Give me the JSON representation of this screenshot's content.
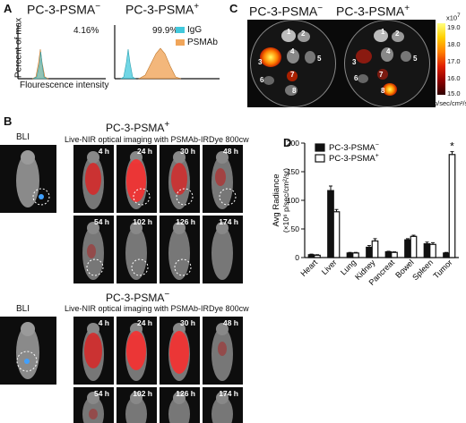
{
  "panels": {
    "a": {
      "letter": "A",
      "title_neg_main": "PC-3-PSMA",
      "title_neg_sup": "−",
      "title_pos_main": "PC-3-PSMA",
      "title_pos_sup": "+",
      "pct_neg": "4.16%",
      "pct_pos": "99.9%",
      "ylabel": "Percent of max",
      "xlabel": "Flourescence intensity",
      "legend": [
        {
          "label": "IgG",
          "color": "#41c8dc"
        },
        {
          "label": "PSMAb",
          "color": "#f0a55a"
        }
      ]
    },
    "b": {
      "letter": "B",
      "bli": "BLI",
      "pos_title_main": "PC-3-PSMA",
      "pos_title_sup": "+",
      "neg_title_main": "PC-3-PSMA",
      "neg_title_sup": "−",
      "subtitle": "Live-NIR optical imaging with PSMAb-IRDye 800cw",
      "times": [
        "4 h",
        "24 h",
        "30 h",
        "48 h",
        "54 h",
        "102 h",
        "126 h",
        "174 h"
      ]
    },
    "c": {
      "letter": "C",
      "title_neg_main": "PC-3-PSMA",
      "title_neg_sup": "−",
      "title_pos_main": "PC-3-PSMA",
      "title_pos_sup": "+",
      "organ_numbers": [
        "1",
        "2",
        "3",
        "4",
        "5",
        "6",
        "7",
        "8"
      ],
      "scale_top": "x10",
      "scale_top_sup": "7",
      "scale_ticks": [
        "19.0",
        "18.0",
        "17.0",
        "16.0",
        "15.0"
      ],
      "scale_unit": "p/sec/cm²/sr",
      "gradient": [
        "#ffff80",
        "#ffd000",
        "#ff8000",
        "#e02000",
        "#900000",
        "#300000"
      ]
    }
  },
  "chart_data": {
    "type": "bar",
    "panel_letter": "D",
    "categories": [
      "Heart",
      "Liver",
      "Lung",
      "Kidney",
      "Pancreat",
      "Bowel",
      "Spleen",
      "Tumor"
    ],
    "series": [
      {
        "name": "PC-3-PSMA−",
        "legend_main": "PC-3-PSMA",
        "legend_sup": "−",
        "fill": "#111111",
        "values": [
          5,
          117,
          8,
          18,
          10,
          31,
          24,
          8
        ],
        "errors": [
          1,
          8,
          1,
          3,
          1,
          2,
          3,
          1
        ]
      },
      {
        "name": "PC-3-PSMA+",
        "legend_main": "PC-3-PSMA",
        "legend_sup": "+",
        "fill": "#ffffff",
        "values": [
          4,
          80,
          8,
          29,
          9,
          37,
          23,
          180
        ],
        "errors": [
          1,
          4,
          1,
          4,
          1,
          2,
          3,
          5
        ]
      }
    ],
    "ylabel_line1": "Avg Radiance",
    "ylabel_line2": "(×10⁶ p/sec/cm²/sr)",
    "ylim": [
      0,
      200
    ],
    "yticks": [
      "0",
      "50",
      "100",
      "150",
      "200"
    ],
    "annotation": "*"
  }
}
